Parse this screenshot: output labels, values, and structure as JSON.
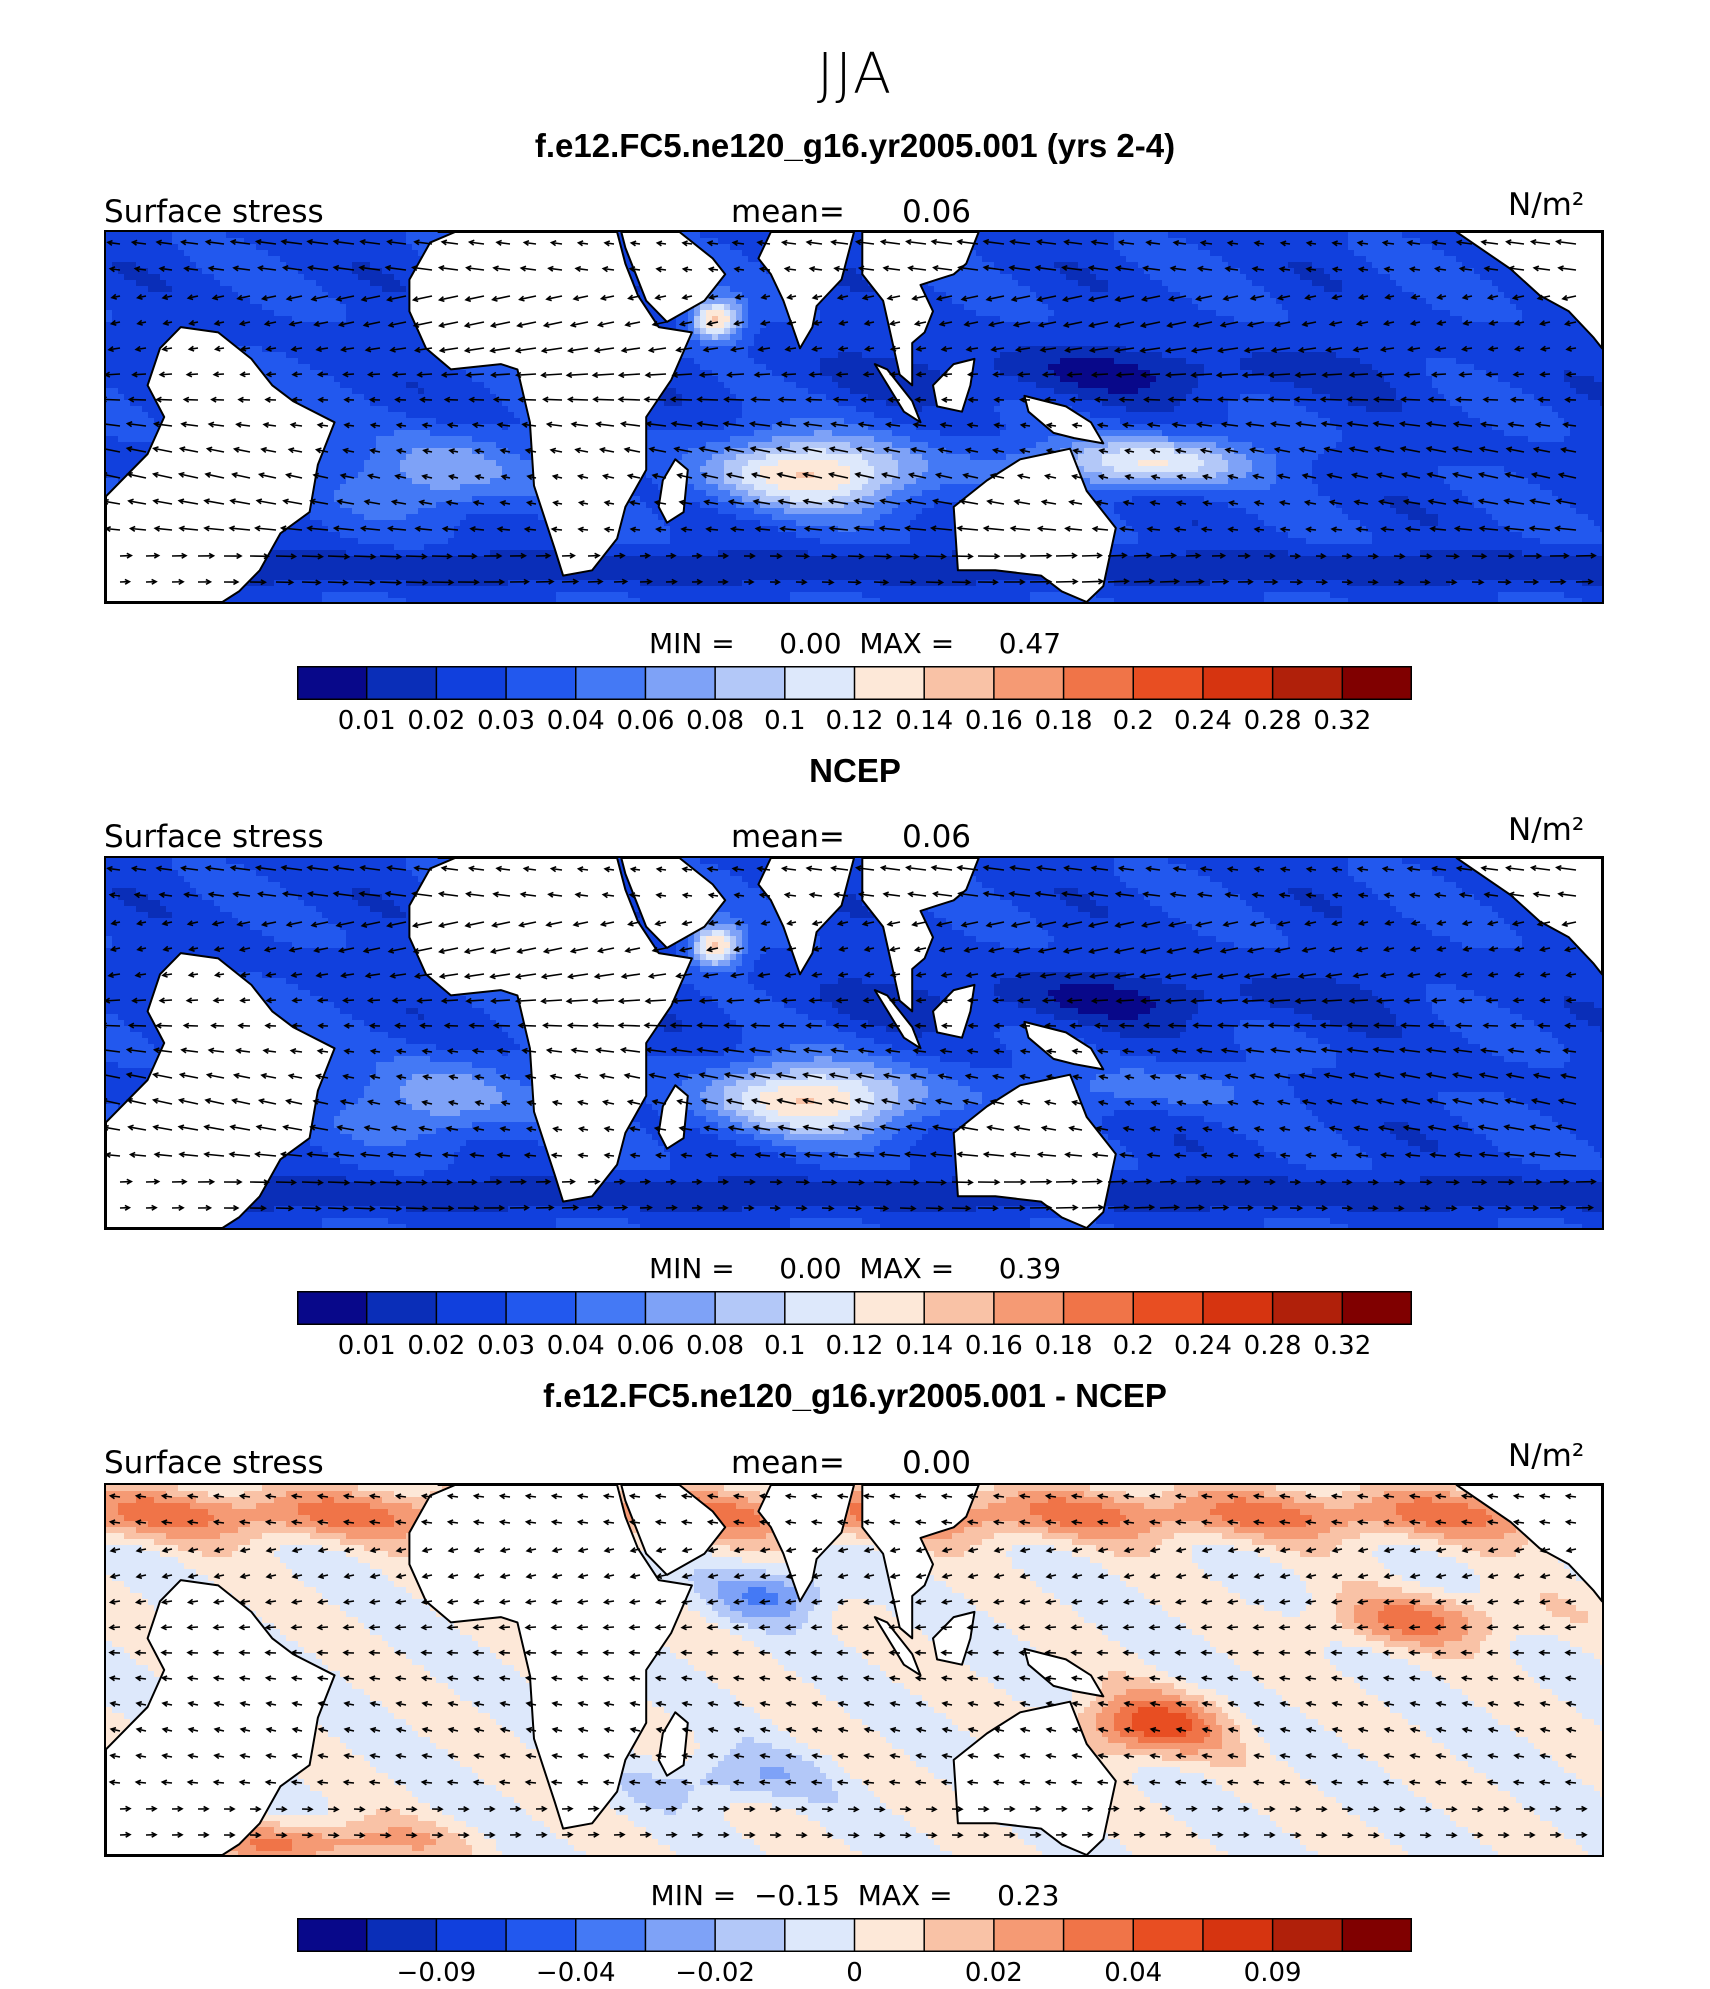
{
  "season": "JJA",
  "panels": [
    {
      "title": "f.e12.FC5.ne120_g16.yr2005.001 (yrs 2-4)",
      "variable": "Surface stress",
      "mean_label": "mean=",
      "mean_value": "0.06",
      "units": "N/m²",
      "min_label": "MIN =",
      "min_value": "0.00",
      "max_label": "MAX =",
      "max_value": "0.47",
      "style": "abs"
    },
    {
      "title": "NCEP",
      "variable": "Surface stress",
      "mean_label": "mean=",
      "mean_value": "0.06",
      "units": "N/m²",
      "min_label": "MIN =",
      "min_value": "0.00",
      "max_label": "MAX =",
      "max_value": "0.39",
      "style": "abs"
    },
    {
      "title": "f.e12.FC5.ne120_g16.yr2005.001 - NCEP",
      "variable": "Surface stress",
      "mean_label": "mean=",
      "mean_value": "0.00",
      "units": "N/m²",
      "min_label": "MIN =",
      "min_value": "−0.15",
      "max_label": "MAX =",
      "max_value": "0.23",
      "style": "diff"
    }
  ],
  "colorbar_colors": [
    "#08088a",
    "#0a2eb8",
    "#1140dd",
    "#2258ee",
    "#4479f5",
    "#7ea2f7",
    "#b3c8f8",
    "#dde8fb",
    "#fde8d8",
    "#f9c2a6",
    "#f59a74",
    "#f07448",
    "#e84e22",
    "#d63410",
    "#b0200a",
    "#800000"
  ],
  "colorbar_abs_ticks": [
    "0.01",
    "0.02",
    "0.03",
    "0.04",
    "0.06",
    "0.08",
    "0.1",
    "0.12",
    "0.14",
    "0.16",
    "0.18",
    "0.2",
    "0.24",
    "0.28",
    "0.32"
  ],
  "colorbar_diff_ticks": [
    {
      "label": "−0.09",
      "boundary": 2
    },
    {
      "label": "−0.04",
      "boundary": 4
    },
    {
      "label": "−0.02",
      "boundary": 6
    },
    {
      "label": "0",
      "boundary": 8
    },
    {
      "label": "0.02",
      "boundary": 10
    },
    {
      "label": "0.04",
      "boundary": 12
    },
    {
      "label": "0.09",
      "boundary": 14
    }
  ],
  "chart_data": [
    {
      "type": "heatmap",
      "title": "f.e12.FC5.ne120_g16.yr2005.001 (yrs 2-4)",
      "variable": "Surface stress",
      "units": "N/m²",
      "mean": 0.06,
      "min": 0.0,
      "max": 0.47,
      "levels": [
        0.01,
        0.02,
        0.03,
        0.04,
        0.06,
        0.08,
        0.1,
        0.12,
        0.14,
        0.16,
        0.18,
        0.2,
        0.24,
        0.28,
        0.32
      ],
      "overlay": "wind stress vectors"
    },
    {
      "type": "heatmap",
      "title": "NCEP",
      "variable": "Surface stress",
      "units": "N/m²",
      "mean": 0.06,
      "min": 0.0,
      "max": 0.39,
      "levels": [
        0.01,
        0.02,
        0.03,
        0.04,
        0.06,
        0.08,
        0.1,
        0.12,
        0.14,
        0.16,
        0.18,
        0.2,
        0.24,
        0.28,
        0.32
      ],
      "overlay": "wind stress vectors"
    },
    {
      "type": "heatmap",
      "title": "f.e12.FC5.ne120_g16.yr2005.001 - NCEP",
      "variable": "Surface stress",
      "units": "N/m²",
      "mean": 0.0,
      "min": -0.15,
      "max": 0.23,
      "tick_labels": [
        "−0.09",
        "−0.04",
        "−0.02",
        "0",
        "0.02",
        "0.04",
        "0.09"
      ],
      "overlay": "wind stress difference vectors"
    }
  ]
}
